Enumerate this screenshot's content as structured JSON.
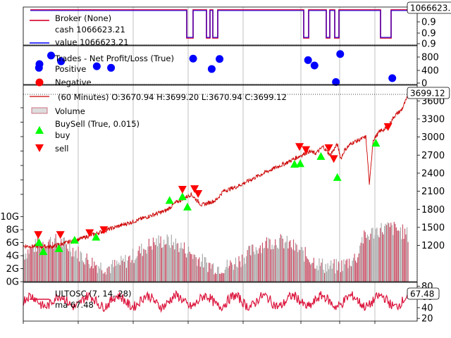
{
  "colors": {
    "broker_line": "#dc143c",
    "value_line": "#0000ff",
    "trade_positive": "#0000ff",
    "trade_negative": "#ff0000",
    "price_line": "#cc0000",
    "volume_bar": "#aaaaaa",
    "volume_bar_down": "#c8546a",
    "buy_marker": "#00ff00",
    "sell_marker": "#ff0000",
    "ultosc_line": "#dc143c",
    "grid": "#b0b0b0"
  },
  "chart_data": [
    {
      "type": "line",
      "panel": "broker",
      "legend": [
        "Broker (None)",
        "cash 1066623.21",
        "value 1066623.21"
      ],
      "last_value_label": "1066623.",
      "y_ticks": [
        "0.9",
        "0.9",
        "0.9"
      ],
      "series": [
        {
          "name": "cash",
          "level": 1066623.21
        },
        {
          "name": "value",
          "level": 1066623.21
        }
      ]
    },
    {
      "type": "scatter",
      "panel": "trades",
      "legend": [
        "Trades - Net Profit/Loss (True)",
        "Positive",
        "Negative"
      ],
      "y_ticks": [
        "800",
        "400",
        "0"
      ],
      "ylim": [
        0,
        900
      ],
      "series": [
        {
          "name": "Positive",
          "x": [
            22,
            39,
            53,
            103,
            123,
            238,
            264,
            275,
            399,
            408,
            438,
            444,
            517
          ],
          "y": [
            380,
            700,
            550,
            420,
            380,
            620,
            350,
            610,
            580,
            440,
            10,
            740,
            110
          ]
        }
      ]
    },
    {
      "type": "line",
      "panel": "price",
      "legend": [
        "(60 Minutes) O:3670.94 H:3699.20 L:3670.94 C:3699.12",
        "Volume",
        "BuySell (True, 0.015)",
        "buy",
        "sell"
      ],
      "last_value_label": "3699.12",
      "y_ticks": [
        "3600",
        "3300",
        "3000",
        "2700",
        "2400",
        "2100",
        "1800",
        "1500",
        "1200"
      ],
      "ylim": [
        950,
        3720
      ],
      "volume_ticks": [
        "10G",
        "8G",
        "6G",
        "4G",
        "2G",
        "0G"
      ],
      "volume_lim": [
        0,
        13
      ],
      "price_anchors": {
        "x": [
          0,
          40,
          80,
          120,
          160,
          200,
          215,
          235,
          250,
          270,
          280,
          300,
          340,
          370,
          390,
          400,
          410,
          420,
          430,
          440,
          445,
          450,
          460,
          480,
          485,
          490,
          500,
          510,
          520,
          530,
          540
        ],
        "y": [
          1190,
          1180,
          1310,
          1470,
          1620,
          1780,
          1920,
          2050,
          1870,
          1950,
          2100,
          2180,
          2420,
          2580,
          2700,
          2760,
          2730,
          2840,
          2700,
          2880,
          2640,
          2780,
          2900,
          3000,
          2200,
          2950,
          3100,
          3150,
          3350,
          3450,
          3700
        ]
      },
      "buy": {
        "x": [
          22,
          28,
          50,
          72,
          102,
          205,
          223,
          230,
          380,
          388,
          417,
          440,
          494
        ],
        "y": [
          1250,
          1100,
          1150,
          1290,
          1340,
          1950,
          2010,
          1840,
          2550,
          2560,
          2680,
          2330,
          2900
        ]
      },
      "sell": {
        "x": [
          21,
          52,
          93,
          113,
          223,
          240,
          245,
          387,
          396,
          428,
          435,
          511
        ],
        "y": [
          1380,
          1380,
          1410,
          1460,
          2130,
          2140,
          2060,
          2840,
          2790,
          2820,
          2640,
          3170
        ]
      }
    },
    {
      "type": "line",
      "panel": "ultosc",
      "legend": [
        "ULTOSC (7, 14, 28)",
        "ma 67.48"
      ],
      "last_value_label": "67.48",
      "y_ticks": [
        "80",
        "60",
        "40",
        "20"
      ],
      "ylim": [
        15,
        87
      ]
    }
  ]
}
